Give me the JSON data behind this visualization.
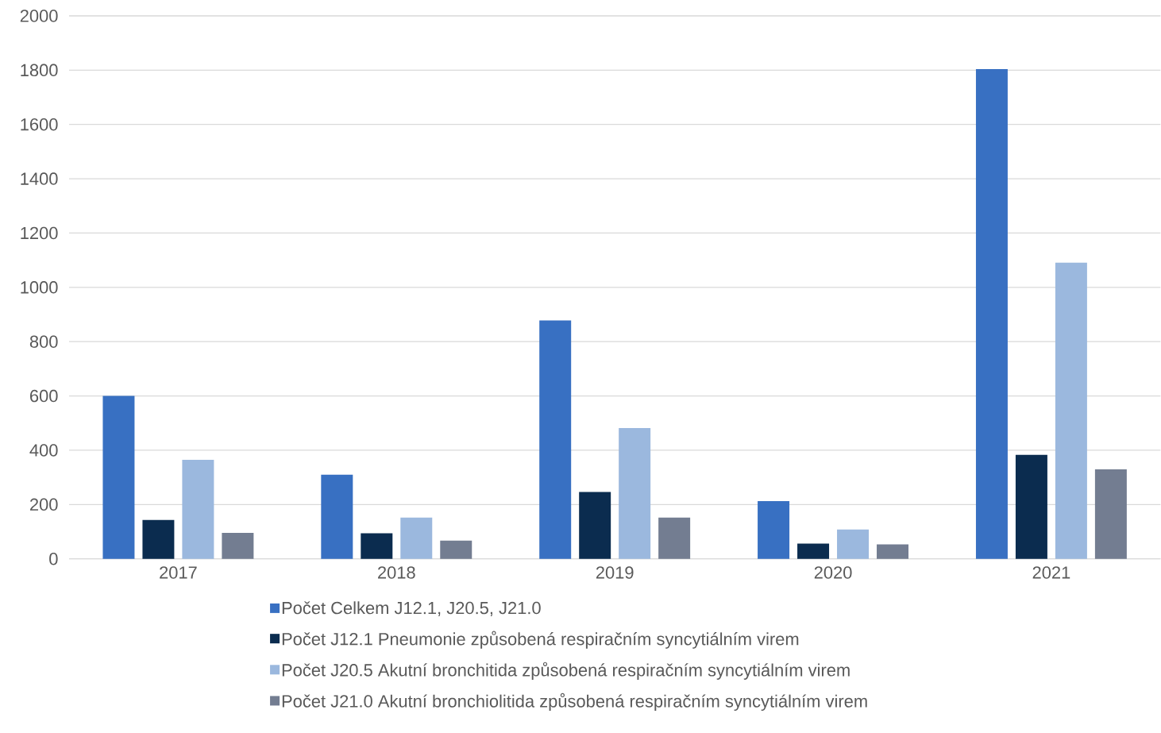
{
  "chart_data": {
    "type": "bar",
    "categories": [
      "2017",
      "2018",
      "2019",
      "2020",
      "2021"
    ],
    "series": [
      {
        "name": "Počet Celkem J12.1, J20.5, J21.0",
        "color": "#3870c2",
        "values": [
          600,
          310,
          878,
          213,
          1804
        ]
      },
      {
        "name": "Počet J12.1 Pneumonie způsobená respiračním syncytiálním virem",
        "color": "#0b2c4f",
        "values": [
          143,
          94,
          246,
          56,
          383
        ]
      },
      {
        "name": "Počet J20.5 Akutní bronchitida způsobená respiračním syncytiálním virem",
        "color": "#9bb8de",
        "values": [
          365,
          152,
          482,
          108,
          1091
        ]
      },
      {
        "name": "Počet J21.0 Akutní bronchiolitida způsobená respiračním syncytiálním virem",
        "color": "#737d91",
        "values": [
          96,
          67,
          152,
          53,
          330
        ]
      }
    ],
    "ylim": [
      0,
      2000
    ],
    "yticks": [
      0,
      200,
      400,
      600,
      800,
      1000,
      1200,
      1400,
      1600,
      1800,
      2000
    ],
    "grid": "y",
    "legend": "bottom"
  }
}
